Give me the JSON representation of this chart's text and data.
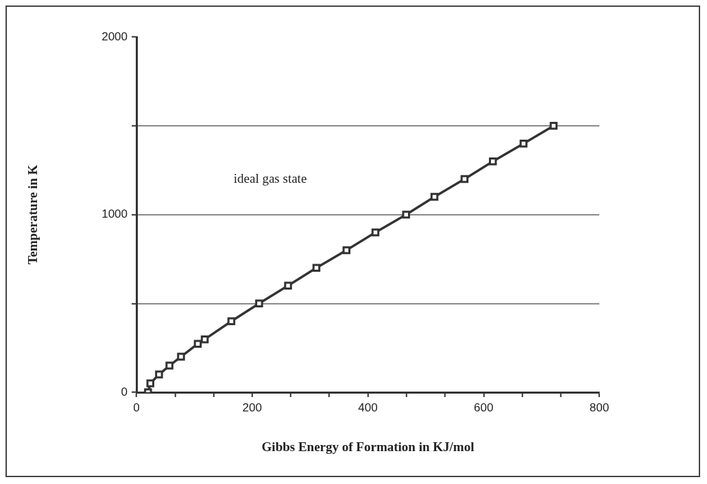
{
  "chart_data": {
    "type": "line",
    "xlabel": "Gibbs Energy of Formation in KJ/mol",
    "ylabel": "Temperature in K",
    "x": [
      20,
      24,
      39,
      57,
      77,
      106,
      118,
      164,
      212,
      262,
      311,
      363,
      413,
      466,
      515,
      567,
      616,
      669,
      721
    ],
    "series": [
      {
        "color": "#333333",
        "values": [
          0,
          50,
          100,
          150,
          200,
          273,
          298,
          400,
          500,
          600,
          700,
          800,
          900,
          1000,
          1100,
          1200,
          1300,
          1400,
          1500
        ]
      }
    ],
    "xlim": [
      0,
      800
    ],
    "xticks": [
      0,
      {
        "value": 66.7,
        "label": null
      },
      {
        "value": 133.3,
        "label": null
      },
      200,
      {
        "value": 266.7,
        "label": null
      },
      {
        "value": 333.3,
        "label": null
      },
      400,
      {
        "value": 466.7,
        "label": null
      },
      {
        "value": 533.3,
        "label": null
      },
      600,
      {
        "value": 666.7,
        "label": null
      },
      {
        "value": 733.3,
        "label": null
      },
      800
    ],
    "ylim": [
      0,
      2000
    ],
    "yticks": [
      0,
      {
        "value": 500,
        "label": null
      },
      1000,
      {
        "value": 1500,
        "label": null
      },
      2000
    ],
    "grid": "y",
    "marker": "square",
    "line_style": "solid",
    "legend": false,
    "annotations": [
      "ideal gas state"
    ]
  }
}
